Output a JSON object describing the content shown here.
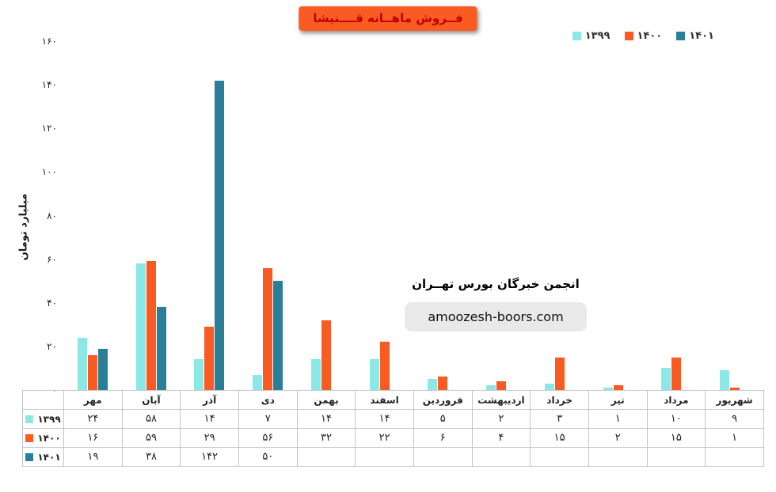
{
  "page": {
    "background": "#ffffff"
  },
  "title_badge": {
    "text": "فــروش ماهــانه قــــنیشا",
    "bg": "#F95B22",
    "text_color": "#C00000"
  },
  "watermark": {
    "line1": "انجمن خبرگان بورس تهــران",
    "line2": "amoozesh-boors.com"
  },
  "chart_data": {
    "type": "bar",
    "title": "فــروش ماهــانه قــــنیشا",
    "xlabel": "",
    "ylabel": "میلیارد تومان",
    "ylim": [
      0,
      160
    ],
    "ytick_step": 20,
    "grid": false,
    "legend_position": "top-right",
    "digits": "persian",
    "categories": [
      "مهر",
      "آبان",
      "آذر",
      "دی",
      "بهمن",
      "اسفند",
      "فروردین",
      "اردیبهشت",
      "خرداد",
      "تیر",
      "مرداد",
      "شهریور"
    ],
    "series": [
      {
        "name": "۱۳۹۹",
        "color": "#8CE8E6",
        "values": [
          24,
          58,
          14,
          7,
          14,
          14,
          5,
          2,
          3,
          1,
          10,
          9
        ]
      },
      {
        "name": "۱۴۰۰",
        "color": "#F95B22",
        "values": [
          16,
          59,
          29,
          56,
          32,
          22,
          6,
          4,
          15,
          2,
          15,
          1
        ]
      },
      {
        "name": "۱۴۰۱",
        "color": "#2A7E97",
        "values": [
          19,
          38,
          142,
          50,
          null,
          null,
          null,
          null,
          null,
          null,
          null,
          null
        ]
      }
    ],
    "data_table_shown": true
  }
}
